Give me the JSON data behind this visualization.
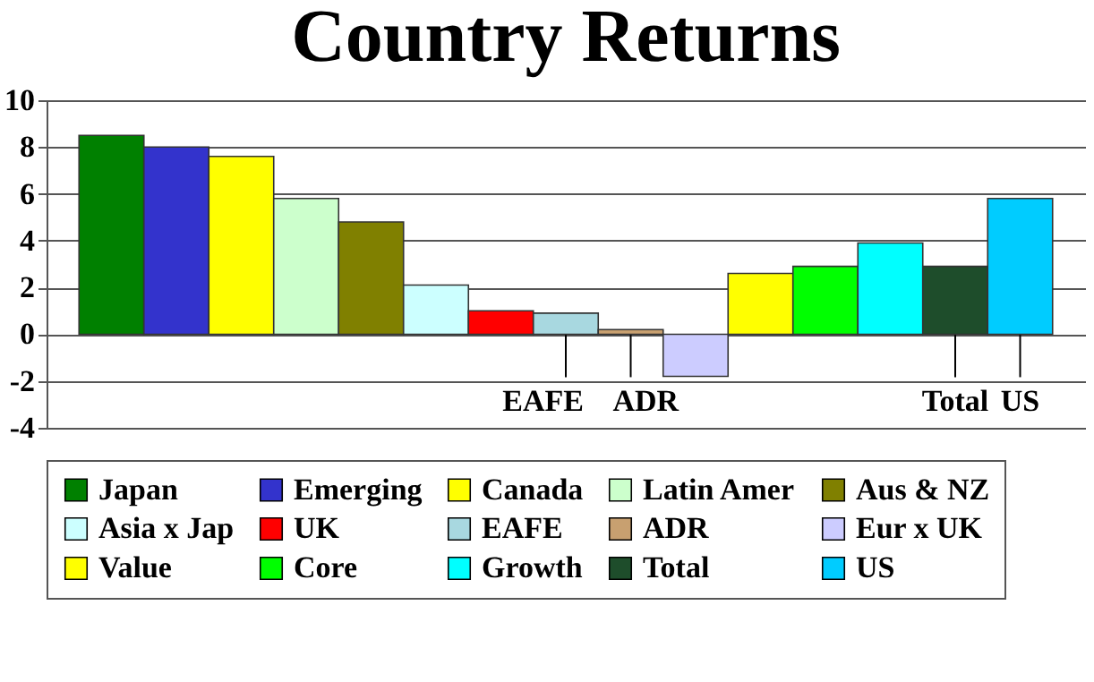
{
  "chart_data": {
    "type": "bar",
    "title": "Country Returns",
    "categories": [
      null,
      null,
      null,
      null,
      null,
      null,
      null,
      null,
      null,
      null,
      null,
      null,
      null,
      null,
      null
    ],
    "series": [
      {
        "name": "Japan",
        "color": "#008000",
        "values": [
          8.5,
          null,
          null,
          null,
          null,
          null,
          null,
          null,
          null,
          null,
          null,
          null,
          null,
          null,
          null
        ]
      },
      {
        "name": "Emerging",
        "color": "#3333cc",
        "values": [
          null,
          8.0,
          null,
          null,
          null,
          null,
          null,
          null,
          null,
          null,
          null,
          null,
          null,
          null,
          null
        ]
      },
      {
        "name": "Canada",
        "color": "#ffff00",
        "values": [
          null,
          null,
          7.6,
          null,
          null,
          null,
          null,
          null,
          null,
          null,
          null,
          null,
          null,
          null,
          null
        ]
      },
      {
        "name": "Latin Amer",
        "color": "#ccffcc",
        "values": [
          null,
          null,
          null,
          5.8,
          null,
          null,
          null,
          null,
          null,
          null,
          null,
          null,
          null,
          null,
          null
        ]
      },
      {
        "name": "Aus & NZ",
        "color": "#808000",
        "values": [
          null,
          null,
          null,
          null,
          4.8,
          null,
          null,
          null,
          null,
          null,
          null,
          null,
          null,
          null,
          null
        ]
      },
      {
        "name": "Asia x Jap",
        "color": "#ccffff",
        "values": [
          null,
          null,
          null,
          null,
          null,
          2.1,
          null,
          null,
          null,
          null,
          null,
          null,
          null,
          null,
          null
        ]
      },
      {
        "name": "UK",
        "color": "#ff0000",
        "values": [
          null,
          null,
          null,
          null,
          null,
          null,
          1.0,
          null,
          null,
          null,
          null,
          null,
          null,
          null,
          null
        ]
      },
      {
        "name": "EAFE",
        "color": "#a8d8e0",
        "values": [
          null,
          null,
          null,
          null,
          null,
          null,
          null,
          0.9,
          null,
          null,
          null,
          null,
          null,
          null,
          null
        ]
      },
      {
        "name": "ADR",
        "color": "#c8a070",
        "values": [
          null,
          null,
          null,
          null,
          null,
          null,
          null,
          null,
          0.2,
          null,
          null,
          null,
          null,
          null,
          null
        ]
      },
      {
        "name": "Eur x UK",
        "color": "#ccccff",
        "values": [
          null,
          null,
          null,
          null,
          null,
          null,
          null,
          null,
          null,
          -1.8,
          null,
          null,
          null,
          null,
          null
        ]
      },
      {
        "name": "Value",
        "color": "#ffff00",
        "values": [
          null,
          null,
          null,
          null,
          null,
          null,
          null,
          null,
          null,
          null,
          2.6,
          null,
          null,
          null,
          null
        ]
      },
      {
        "name": "Core",
        "color": "#00ff00",
        "values": [
          null,
          null,
          null,
          null,
          null,
          null,
          null,
          null,
          null,
          null,
          null,
          2.9,
          null,
          null,
          null
        ]
      },
      {
        "name": "Growth",
        "color": "#00ffff",
        "values": [
          null,
          null,
          null,
          null,
          null,
          null,
          null,
          null,
          null,
          null,
          null,
          null,
          3.9,
          null,
          null
        ]
      },
      {
        "name": "Total",
        "color": "#1e4d2b",
        "values": [
          null,
          null,
          null,
          null,
          null,
          null,
          null,
          null,
          null,
          null,
          null,
          null,
          null,
          2.9,
          null
        ]
      },
      {
        "name": "US",
        "color": "#00ccff",
        "values": [
          null,
          null,
          null,
          null,
          null,
          null,
          null,
          null,
          null,
          null,
          null,
          null,
          null,
          null,
          5.8
        ]
      }
    ],
    "ylim": [
      -4,
      10
    ],
    "yticks": [
      -4,
      -2,
      0,
      2,
      4,
      6,
      8,
      10
    ],
    "grid": "y",
    "legend": "bottom",
    "tick_labels": "y",
    "annotations": [
      {
        "text": "EAFE",
        "y": 0.9
      },
      {
        "text": "ADR",
        "y": 0.2
      },
      {
        "text": "Total",
        "y": 2.9
      },
      {
        "text": "US",
        "y": 5.8
      }
    ]
  }
}
